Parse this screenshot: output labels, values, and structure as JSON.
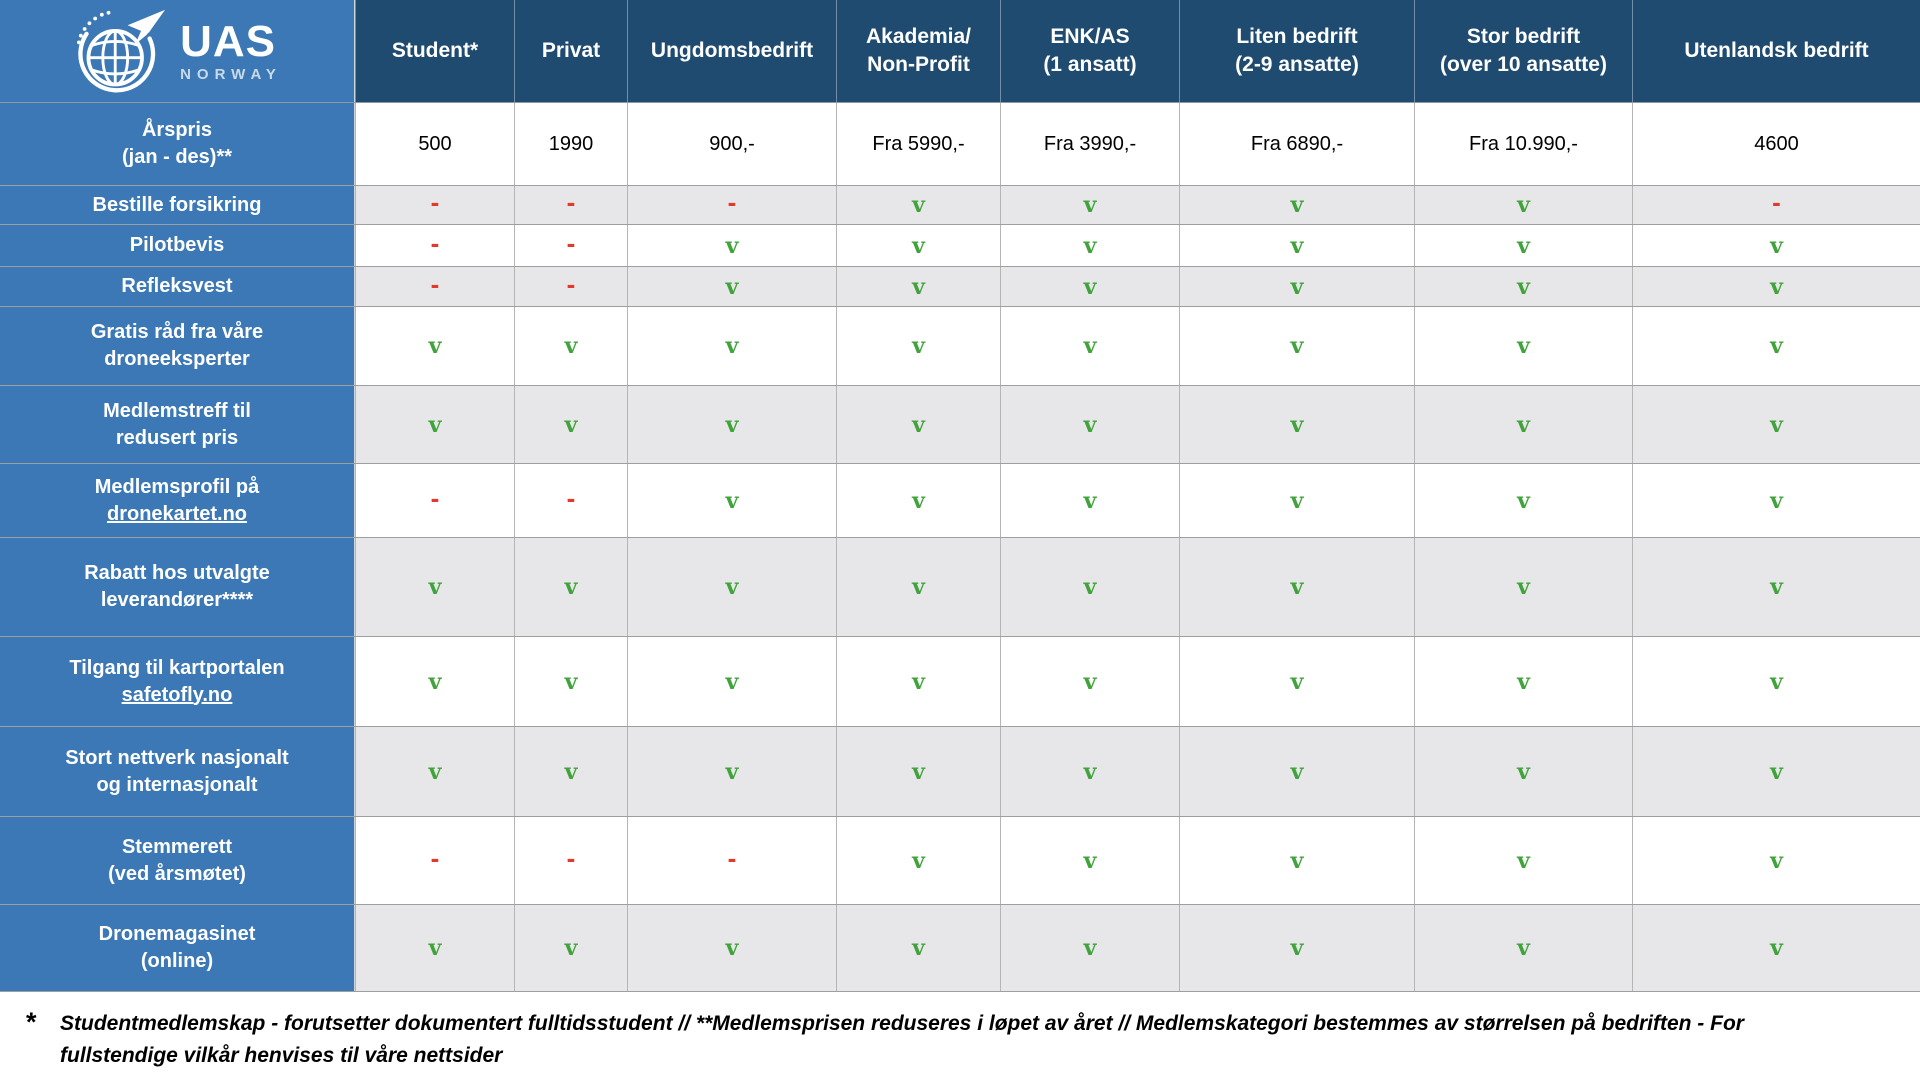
{
  "logo": {
    "title": "UAS",
    "subtitle": "NORWAY"
  },
  "symbols": {
    "included": "v",
    "excluded": "-"
  },
  "colors": {
    "header_bg": "#1F4B70",
    "label_bg": "#3B78B5",
    "row_alt": "#E7E7E9",
    "check_green": "#41A33C",
    "dash_red": "#E2392D"
  },
  "chart_data": {
    "type": "table",
    "columns": [
      [
        "Student*"
      ],
      [
        "Privat"
      ],
      [
        "Ungdomsbedrift"
      ],
      [
        "Akademia/",
        "Non-Profit"
      ],
      [
        "ENK/AS",
        "(1 ansatt)"
      ],
      [
        "Liten bedrift",
        "(2-9 ansatte)"
      ],
      [
        "Stor bedrift",
        "(over 10 ansatte)"
      ],
      [
        "Utenlandsk bedrift"
      ]
    ],
    "rows": [
      {
        "kind": "price",
        "label_lines": [
          "Årspris",
          "(jan - des)**"
        ],
        "values": [
          "500",
          "1990",
          "900,-",
          "Fra 5990,-",
          "Fra 3990,-",
          "Fra 6890,-",
          "Fra 10.990,-",
          "4600"
        ]
      },
      {
        "kind": "symbol",
        "label_lines": [
          "Bestille forsikring"
        ],
        "values": [
          "-",
          "-",
          "-",
          "v",
          "v",
          "v",
          "v",
          "-"
        ]
      },
      {
        "kind": "symbol",
        "label_lines": [
          "Pilotbevis"
        ],
        "values": [
          "-",
          "-",
          "v",
          "v",
          "v",
          "v",
          "v",
          "v"
        ]
      },
      {
        "kind": "symbol",
        "label_lines": [
          "Refleksvest"
        ],
        "values": [
          "-",
          "-",
          "v",
          "v",
          "v",
          "v",
          "v",
          "v"
        ]
      },
      {
        "kind": "symbol",
        "label_lines": [
          "Gratis råd fra våre",
          "droneeksperter"
        ],
        "values": [
          "v",
          "v",
          "v",
          "v",
          "v",
          "v",
          "v",
          "v"
        ]
      },
      {
        "kind": "symbol",
        "label_lines": [
          "Medlemstreff til",
          "redusert pris"
        ],
        "values": [
          "v",
          "v",
          "v",
          "v",
          "v",
          "v",
          "v",
          "v"
        ]
      },
      {
        "kind": "symbol",
        "label_lines": [
          "Medlemsprofil på"
        ],
        "link": "dronekartet.no",
        "values": [
          "-",
          "-",
          "v",
          "v",
          "v",
          "v",
          "v",
          "v"
        ]
      },
      {
        "kind": "symbol",
        "label_lines": [
          "Rabatt hos utvalgte",
          "leverandører****"
        ],
        "values": [
          "v",
          "v",
          "v",
          "v",
          "v",
          "v",
          "v",
          "v"
        ]
      },
      {
        "kind": "symbol",
        "label_lines": [
          "Tilgang til kartportalen"
        ],
        "link": "safetofly.no",
        "values": [
          "v",
          "v",
          "v",
          "v",
          "v",
          "v",
          "v",
          "v"
        ]
      },
      {
        "kind": "symbol",
        "label_lines": [
          "Stort nettverk nasjonalt",
          "og internasjonalt"
        ],
        "values": [
          "v",
          "v",
          "v",
          "v",
          "v",
          "v",
          "v",
          "v"
        ]
      },
      {
        "kind": "symbol",
        "label_lines": [
          "Stemmerett",
          "(ved årsmøtet)"
        ],
        "values": [
          "-",
          "-",
          "-",
          "v",
          "v",
          "v",
          "v",
          "v"
        ]
      },
      {
        "kind": "symbol",
        "label_lines": [
          "Dronemagasinet",
          "(online)"
        ],
        "values": [
          "v",
          "v",
          "v",
          "v",
          "v",
          "v",
          "v",
          "v"
        ]
      }
    ]
  },
  "footnote": {
    "marker": "*",
    "text": "Studentmedlemskap - forutsetter dokumentert fulltidsstudent // **Medlemsprisen reduseres i løpet av året // Medlemskategori bestemmes av størrelsen på bedriften - For fullstendige vilkår henvises til våre nettsider"
  }
}
